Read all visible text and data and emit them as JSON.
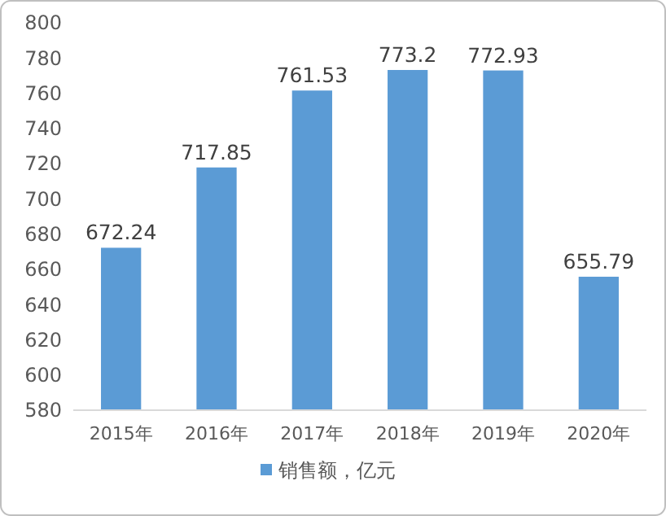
{
  "chart_data": {
    "type": "bar",
    "categories": [
      "2015年",
      "2016年",
      "2017年",
      "2018年",
      "2019年",
      "2020年"
    ],
    "series": [
      {
        "name": "销售额，亿元",
        "color": "#5b9bd5",
        "values": [
          672.24,
          717.85,
          761.53,
          773.2,
          772.93,
          655.79
        ]
      }
    ],
    "ylim": [
      580,
      800
    ],
    "yticks": [
      580,
      600,
      620,
      640,
      660,
      680,
      700,
      720,
      740,
      760,
      780,
      800
    ],
    "data_labels": true,
    "legend": "bottom",
    "grid": false
  }
}
